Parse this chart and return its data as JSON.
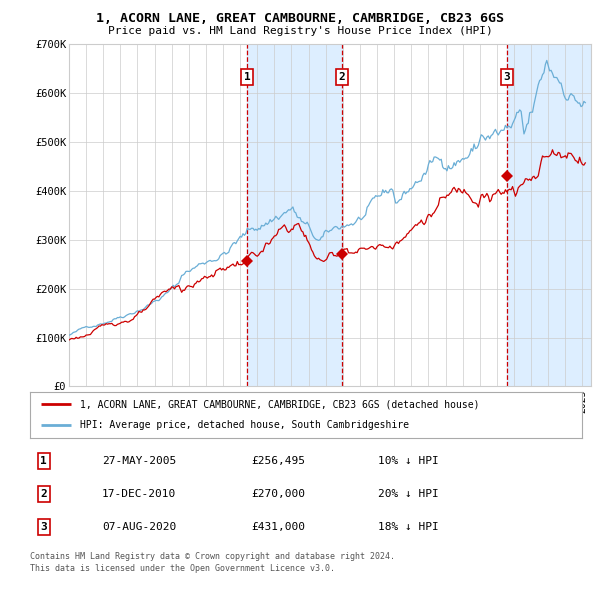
{
  "title": "1, ACORN LANE, GREAT CAMBOURNE, CAMBRIDGE, CB23 6GS",
  "subtitle": "Price paid vs. HM Land Registry's House Price Index (HPI)",
  "legend_line1": "1, ACORN LANE, GREAT CAMBOURNE, CAMBRIDGE, CB23 6GS (detached house)",
  "legend_line2": "HPI: Average price, detached house, South Cambridgeshire",
  "footer1": "Contains HM Land Registry data © Crown copyright and database right 2024.",
  "footer2": "This data is licensed under the Open Government Licence v3.0.",
  "transactions": [
    {
      "num": 1,
      "date": "27-MAY-2005",
      "price": 256495,
      "pct": "10%",
      "dir": "↓"
    },
    {
      "num": 2,
      "date": "17-DEC-2010",
      "price": 270000,
      "pct": "20%",
      "dir": "↓"
    },
    {
      "num": 3,
      "date": "07-AUG-2020",
      "price": 431000,
      "pct": "18%",
      "dir": "↓"
    }
  ],
  "trans_date_floats": [
    2005.397,
    2010.959,
    2020.592
  ],
  "trans_prices": [
    256495,
    270000,
    431000
  ],
  "hpi_color": "#6aaed6",
  "price_color": "#cc0000",
  "marker_color": "#cc0000",
  "vline_color": "#cc0000",
  "shade_color": "#ddeeff",
  "grid_color": "#cccccc",
  "background_color": "#ffffff",
  "ylim": [
    0,
    700000
  ],
  "yticks": [
    0,
    100000,
    200000,
    300000,
    400000,
    500000,
    600000,
    700000
  ],
  "ytick_labels": [
    "£0",
    "£100K",
    "£200K",
    "£300K",
    "£400K",
    "£500K",
    "£600K",
    "£700K"
  ],
  "xstart": 1995.0,
  "xend": 2025.5
}
